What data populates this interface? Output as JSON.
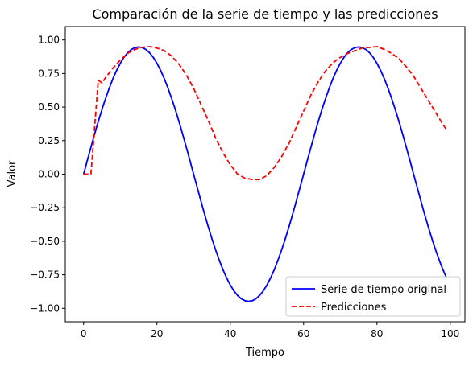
{
  "chart_data": {
    "type": "line",
    "title": "Comparación de la serie de tiempo y las predicciones",
    "xlabel": "Tiempo",
    "ylabel": "Valor",
    "xlim": [
      -5,
      104
    ],
    "ylim": [
      -1.1,
      1.1
    ],
    "x_ticks": [
      0,
      20,
      40,
      60,
      80,
      100
    ],
    "x_tick_labels": [
      "0",
      "20",
      "40",
      "60",
      "80",
      "100"
    ],
    "y_ticks": [
      -1.0,
      -0.75,
      -0.5,
      -0.25,
      0.0,
      0.25,
      0.5,
      0.75,
      1.0
    ],
    "y_tick_labels": [
      "−1.00",
      "−0.75",
      "−0.50",
      "−0.25",
      "0.00",
      "0.25",
      "0.50",
      "0.75",
      "1.00"
    ],
    "grid": false,
    "legend_position": "bottom-right",
    "series": [
      {
        "name": "Serie de tiempo original",
        "color": "#0000ff",
        "style": "solid",
        "x": [
          0,
          1,
          2,
          3,
          4,
          5,
          6,
          7,
          8,
          9,
          10,
          11,
          12,
          13,
          14,
          15,
          16,
          17,
          18,
          19,
          20,
          21,
          22,
          23,
          24,
          25,
          26,
          27,
          28,
          29,
          30,
          31,
          32,
          33,
          34,
          35,
          36,
          37,
          38,
          39,
          40,
          41,
          42,
          43,
          44,
          45,
          46,
          47,
          48,
          49,
          50,
          51,
          52,
          53,
          54,
          55,
          56,
          57,
          58,
          59,
          60,
          61,
          62,
          63,
          64,
          65,
          66,
          67,
          68,
          69,
          70,
          71,
          72,
          73,
          74,
          75,
          76,
          77,
          78,
          79,
          80,
          81,
          82,
          83,
          84,
          85,
          86,
          87,
          88,
          89,
          90,
          91,
          92,
          93,
          94,
          95,
          96,
          97,
          98,
          99
        ],
        "y": [
          0.0,
          0.101,
          0.201,
          0.299,
          0.393,
          0.482,
          0.565,
          0.642,
          0.712,
          0.773,
          0.826,
          0.87,
          0.904,
          0.929,
          0.943,
          0.948,
          0.943,
          0.929,
          0.904,
          0.87,
          0.826,
          0.773,
          0.712,
          0.642,
          0.565,
          0.482,
          0.393,
          0.299,
          0.201,
          0.101,
          0.0,
          -0.101,
          -0.201,
          -0.299,
          -0.393,
          -0.482,
          -0.565,
          -0.642,
          -0.712,
          -0.773,
          -0.826,
          -0.87,
          -0.904,
          -0.929,
          -0.943,
          -0.948,
          -0.943,
          -0.929,
          -0.904,
          -0.87,
          -0.826,
          -0.773,
          -0.712,
          -0.642,
          -0.565,
          -0.482,
          -0.393,
          -0.299,
          -0.201,
          -0.101,
          0.0,
          0.101,
          0.201,
          0.299,
          0.393,
          0.482,
          0.565,
          0.642,
          0.712,
          0.773,
          0.826,
          0.87,
          0.904,
          0.929,
          0.943,
          0.948,
          0.943,
          0.929,
          0.904,
          0.87,
          0.826,
          0.773,
          0.712,
          0.642,
          0.565,
          0.482,
          0.393,
          0.299,
          0.201,
          0.101,
          0.0,
          -0.101,
          -0.201,
          -0.299,
          -0.393,
          -0.482,
          -0.565,
          -0.642,
          -0.712,
          -0.773
        ]
      },
      {
        "name": "Predicciones",
        "color": "#ff0000",
        "style": "dashed",
        "x": [
          0,
          2,
          4,
          5,
          6,
          8,
          10,
          12,
          14,
          16,
          18,
          20,
          22,
          24,
          26,
          28,
          30,
          32,
          34,
          36,
          38,
          40,
          42,
          44,
          46,
          48,
          50,
          52,
          54,
          56,
          58,
          60,
          62,
          64,
          66,
          68,
          70,
          72,
          74,
          76,
          78,
          80,
          82,
          84,
          86,
          88,
          90,
          92,
          94,
          96,
          98,
          99
        ],
        "y": [
          0.0,
          0.0,
          0.7,
          0.68,
          0.72,
          0.79,
          0.85,
          0.9,
          0.93,
          0.945,
          0.95,
          0.94,
          0.92,
          0.88,
          0.82,
          0.74,
          0.64,
          0.52,
          0.4,
          0.27,
          0.16,
          0.07,
          0.0,
          -0.03,
          -0.04,
          -0.04,
          -0.01,
          0.05,
          0.13,
          0.23,
          0.35,
          0.47,
          0.59,
          0.69,
          0.77,
          0.83,
          0.87,
          0.9,
          0.92,
          0.94,
          0.945,
          0.95,
          0.93,
          0.9,
          0.86,
          0.8,
          0.73,
          0.64,
          0.55,
          0.46,
          0.37,
          0.33
        ]
      }
    ]
  }
}
